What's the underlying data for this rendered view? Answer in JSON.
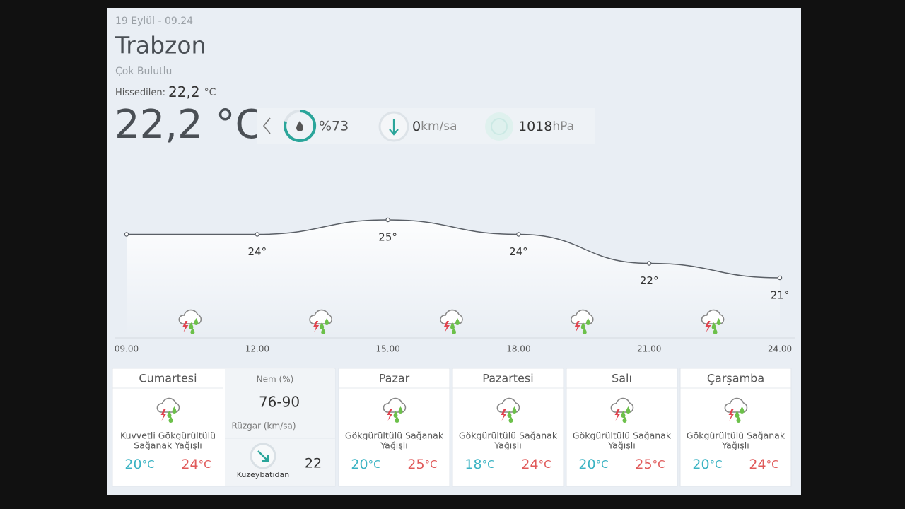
{
  "header": {
    "date": "19 Eylül - 09.24",
    "city": "Trabzon",
    "condition": "Çok Bulutlu",
    "feels_label": "Hissedilen:",
    "feels_value": "22,2",
    "unit": "°C",
    "temperature": "22,2 °C"
  },
  "stats": {
    "humidity": "%73",
    "wind_value": "0",
    "wind_unit": "km/sa",
    "pressure_value": "1018",
    "pressure_unit": "hPa"
  },
  "hourly": {
    "times": [
      "09.00",
      "12.00",
      "15.00",
      "18.00",
      "21.00",
      "24.00"
    ],
    "temps": [
      24,
      24,
      25,
      24,
      22,
      21
    ],
    "temp_labels": [
      null,
      "24°",
      "25°",
      "24°",
      "22°",
      "21°"
    ]
  },
  "today_details": {
    "humidity_label": "Nem (%)",
    "humidity_range": "76-90",
    "wind_label": "Rüzgar (km/sa)",
    "wind_direction": "Kuzeybatıdan",
    "wind_speed": "22"
  },
  "days": [
    {
      "name": "Cumartesi",
      "desc": [
        "Kuvvetli Gökgürültülü",
        "Sağanak Yağışlı"
      ],
      "low": 20,
      "high": 24
    },
    {
      "name": "Pazar",
      "desc": [
        "Gökgürültülü Sağanak",
        "Yağışlı"
      ],
      "low": 20,
      "high": 25
    },
    {
      "name": "Pazartesi",
      "desc": [
        "Gökgürültülü Sağanak",
        "Yağışlı"
      ],
      "low": 18,
      "high": 24
    },
    {
      "name": "Salı",
      "desc": [
        "Gökgürültülü Sağanak",
        "Yağışlı"
      ],
      "low": 20,
      "high": 25
    },
    {
      "name": "Çarşamba",
      "desc": [
        "Gökgürültülü Sağanak",
        "Yağışlı"
      ],
      "low": 20,
      "high": 24
    }
  ]
}
